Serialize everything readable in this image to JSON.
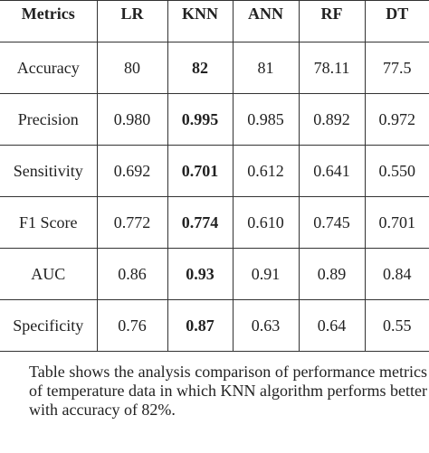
{
  "table": {
    "header": [
      "Metrics",
      "LR",
      "KNN",
      "ANN",
      "RF",
      "DT"
    ],
    "rows": [
      [
        "Accuracy",
        "80",
        "82",
        "81",
        "78.11",
        "77.5"
      ],
      [
        "Precision",
        "0.980",
        "0.995",
        "0.985",
        "0.892",
        "0.972"
      ],
      [
        "Sensitivity",
        "0.692",
        "0.701",
        "0.612",
        "0.641",
        "0.550"
      ],
      [
        "F1 Score",
        "0.772",
        "0.774",
        "0.610",
        "0.745",
        "0.701"
      ],
      [
        "AUC",
        "0.86",
        "0.93",
        "0.91",
        "0.89",
        "0.84"
      ],
      [
        "Specificity",
        "0.76",
        "0.87",
        "0.63",
        "0.64",
        "0.55"
      ]
    ]
  },
  "caption": "Table shows the analysis comparison of performance metrics of temperature data in which KNN algorithm performs better with accuracy of 82%."
}
